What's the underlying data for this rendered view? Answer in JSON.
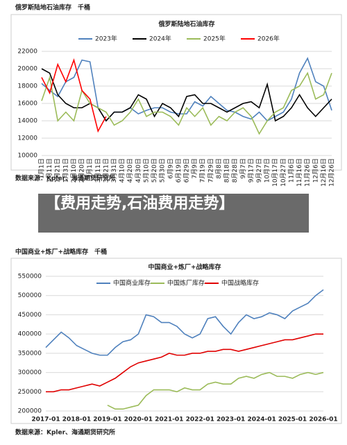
{
  "caption_top": "俄罗斯陆地石油库存　千桶",
  "source_top": "数据来源：Kpler、海通期货研究所",
  "banner": "【费用走势,石油费用走势】",
  "caption_bottom": "中国商业+炼厂+战略库存　千桶",
  "source_bottom": "数据来源：Kpler、海通期货研究所",
  "chart_data": [
    {
      "type": "line",
      "title": "俄罗斯陆地石油库存",
      "categories": [
        "1月1日",
        "1月11日",
        "1月21日",
        "1月31日",
        "2月10日",
        "2月20日",
        "3月1日",
        "3月11日",
        "3月21日",
        "3月31日",
        "4月10日",
        "4月20日",
        "4月30日",
        "5月10日",
        "5月20日",
        "5月30日",
        "6月9日",
        "6月19日",
        "6月29日",
        "7月9日",
        "7月19日",
        "7月29日",
        "8月8日",
        "8月18日",
        "8月28日",
        "9月7日",
        "9月17日",
        "9月27日",
        "10月7日",
        "10月17日",
        "10月27日",
        "11月6日",
        "11月16日",
        "11月26日",
        "12月6日",
        "12月16日",
        "12月26日"
      ],
      "ylim": [
        10000,
        22000
      ],
      "yticks": [
        10000,
        12000,
        14000,
        16000,
        18000,
        20000,
        22000
      ],
      "grid": true,
      "series": [
        {
          "name": "2023年",
          "color": "#4f81bd",
          "values": [
            18300,
            17500,
            16800,
            18500,
            19000,
            21000,
            20800,
            15500,
            14000,
            15000,
            15000,
            15500,
            14800,
            15200,
            15500,
            15500,
            15000,
            14800,
            14800,
            16200,
            15700,
            16800,
            16000,
            15200,
            15000,
            14500,
            14200,
            15000,
            14000,
            14500,
            15000,
            16500,
            19500,
            21200,
            18500,
            18000,
            15200
          ]
        },
        {
          "name": "2024年",
          "color": "#000000",
          "values": [
            20000,
            19500,
            17000,
            16000,
            15500,
            15500,
            16000,
            15500,
            14000,
            15000,
            15000,
            15500,
            17000,
            16500,
            14500,
            16000,
            15500,
            14500,
            16800,
            17000,
            16000,
            16000,
            15500,
            15000,
            15500,
            16000,
            16200,
            15500,
            18200,
            14000,
            14500,
            15500,
            17000,
            15500,
            14500,
            15500,
            16500
          ]
        },
        {
          "name": "2025年",
          "color": "#9bbb59",
          "values": [
            16300,
            19000,
            14000,
            15000,
            14000,
            17500,
            16000,
            15500,
            15000,
            13500,
            14000,
            15000,
            16500,
            14500,
            15000,
            15000,
            14500,
            13500,
            15500,
            14500,
            15500,
            13500,
            14500,
            14000,
            15000,
            15500,
            14500,
            12500,
            14000,
            15000,
            15500,
            17500,
            18000,
            19500,
            16500,
            17000,
            19500
          ]
        },
        {
          "name": "2026年",
          "color": "#ff0000",
          "values": [
            19000,
            17200,
            20500,
            18500,
            21000,
            17500,
            16500,
            12800,
            14500,
            null,
            null,
            null,
            null,
            null,
            null,
            null,
            null,
            null,
            null,
            null,
            null,
            null,
            null,
            null,
            null,
            null,
            null,
            null,
            null,
            null,
            null,
            null,
            null,
            null,
            null,
            null,
            null
          ]
        }
      ]
    },
    {
      "type": "line",
      "title": "中国商业+炼厂+战略库存",
      "categories": [
        "2017-01",
        null,
        null,
        null,
        "2018-01",
        null,
        null,
        null,
        "2019-01",
        null,
        null,
        null,
        "2020-01",
        null,
        null,
        null,
        "2021-01",
        null,
        null,
        null,
        "2022-01",
        null,
        null,
        null,
        "2023-01",
        null,
        null,
        null,
        "2024-01",
        null,
        null,
        null,
        "2025-01",
        null,
        null,
        null,
        "2026-01"
      ],
      "ylim": [
        200000,
        550000
      ],
      "yticks": [
        200000,
        250000,
        300000,
        350000,
        400000,
        450000,
        500000,
        550000
      ],
      "grid": true,
      "series": [
        {
          "name": "中国商业库存",
          "color": "#4f81bd",
          "values": [
            365000,
            385000,
            405000,
            390000,
            370000,
            360000,
            350000,
            345000,
            345000,
            365000,
            380000,
            385000,
            400000,
            450000,
            445000,
            430000,
            430000,
            420000,
            400000,
            390000,
            400000,
            440000,
            445000,
            420000,
            400000,
            430000,
            450000,
            440000,
            445000,
            455000,
            450000,
            440000,
            460000,
            470000,
            480000,
            500000,
            515000
          ]
        },
        {
          "name": "中国炼厂库存",
          "color": "#9bbb59",
          "values": [
            null,
            null,
            null,
            null,
            null,
            null,
            null,
            null,
            215000,
            205000,
            205000,
            210000,
            215000,
            240000,
            255000,
            255000,
            255000,
            250000,
            260000,
            255000,
            255000,
            270000,
            275000,
            270000,
            270000,
            285000,
            290000,
            285000,
            295000,
            300000,
            290000,
            290000,
            285000,
            295000,
            300000,
            295000,
            300000
          ]
        },
        {
          "name": "中国战略库存",
          "color": "#e00000",
          "values": [
            250000,
            250000,
            255000,
            255000,
            260000,
            265000,
            270000,
            265000,
            275000,
            285000,
            300000,
            315000,
            325000,
            330000,
            335000,
            340000,
            350000,
            345000,
            345000,
            350000,
            350000,
            355000,
            355000,
            360000,
            360000,
            355000,
            360000,
            365000,
            370000,
            375000,
            380000,
            385000,
            385000,
            390000,
            395000,
            400000,
            400000
          ]
        }
      ]
    }
  ]
}
